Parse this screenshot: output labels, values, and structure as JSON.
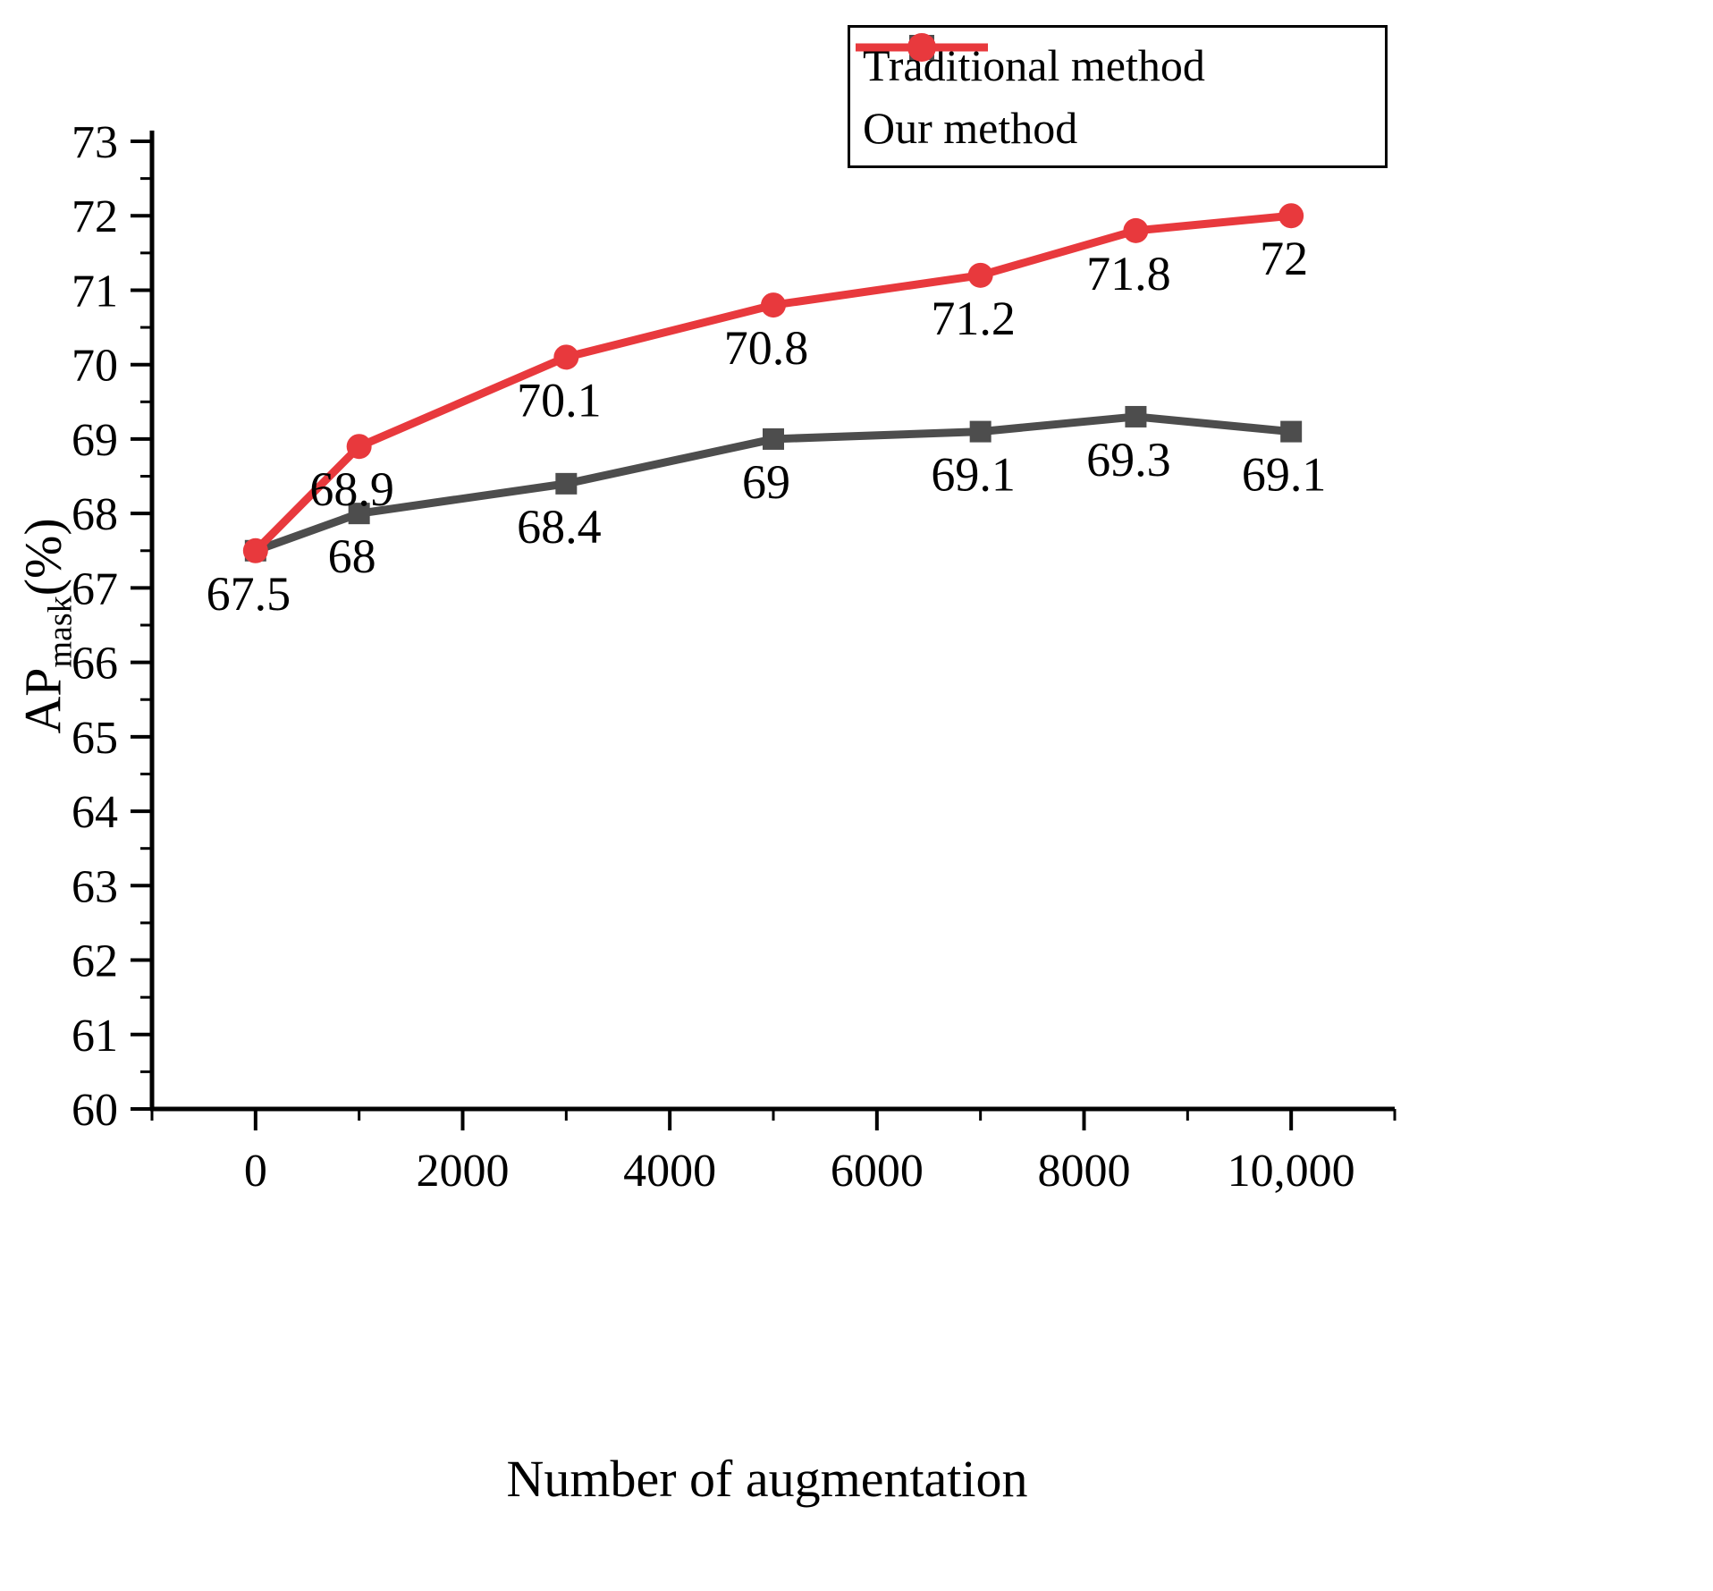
{
  "chart_data": {
    "type": "line",
    "title": "",
    "xlabel": "Number of augmentation",
    "ylabel": {
      "prefix": "AP",
      "sub": "mask",
      "suffix": "(%)"
    },
    "xlim": [
      -1000,
      11000
    ],
    "ylim": [
      60,
      73
    ],
    "grid": false,
    "legend_position": "top-right",
    "x_ticks": [
      {
        "v": 0,
        "label": "0"
      },
      {
        "v": 2000,
        "label": "2000"
      },
      {
        "v": 4000,
        "label": "4000"
      },
      {
        "v": 6000,
        "label": "6000"
      },
      {
        "v": 8000,
        "label": "8000"
      },
      {
        "v": 10000,
        "label": "10,000"
      }
    ],
    "x_minor_step": 1000,
    "y_ticks": [
      {
        "v": 60,
        "label": "60"
      },
      {
        "v": 61,
        "label": "61"
      },
      {
        "v": 62,
        "label": "62"
      },
      {
        "v": 63,
        "label": "63"
      },
      {
        "v": 64,
        "label": "64"
      },
      {
        "v": 65,
        "label": "65"
      },
      {
        "v": 66,
        "label": "66"
      },
      {
        "v": 67,
        "label": "67"
      },
      {
        "v": 68,
        "label": "68"
      },
      {
        "v": 69,
        "label": "69"
      },
      {
        "v": 70,
        "label": "70"
      },
      {
        "v": 71,
        "label": "71"
      },
      {
        "v": 72,
        "label": "72"
      },
      {
        "v": 73,
        "label": "73"
      }
    ],
    "y_minor_step": 0.5,
    "x": [
      0,
      1000,
      3000,
      5000,
      7000,
      8500,
      10000
    ],
    "series": [
      {
        "name": "Traditional method",
        "color": "#4d4d4d",
        "marker": "square",
        "values": [
          67.5,
          68,
          68.4,
          69,
          69.1,
          69.3,
          69.1
        ],
        "labels": [
          "",
          "68",
          "68.4",
          "69",
          "69.1",
          "69.3",
          "69.1"
        ]
      },
      {
        "name": "Our method",
        "color": "#e8393d",
        "marker": "circle",
        "values": [
          67.5,
          68.9,
          70.1,
          70.8,
          71.2,
          71.8,
          72
        ],
        "labels": [
          "67.5",
          "68.9",
          "70.1",
          "70.8",
          "71.2",
          "71.8",
          "72"
        ]
      }
    ]
  }
}
